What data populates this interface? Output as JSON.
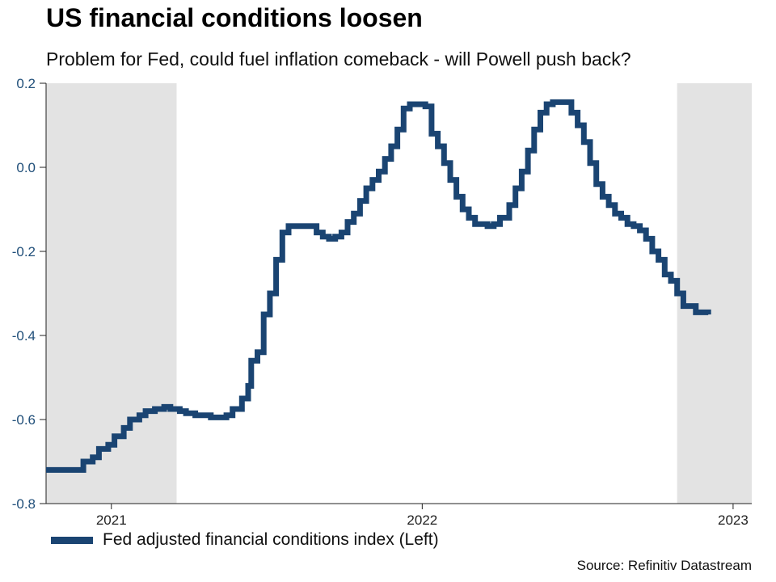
{
  "header": {
    "title": "US financial conditions loosen",
    "subtitle": "Problem for Fed, could fuel inflation comeback - will Powell push back?"
  },
  "legend": {
    "label": "Fed adjusted financial conditions index (Left)"
  },
  "source": "Source: Refinitiv Datastream",
  "colors": {
    "line": "#1a4472",
    "shade": "#e3e3e3",
    "axis": "#222222",
    "y_tick_label": "#1f4e79",
    "x_tick_label": "#222222"
  },
  "chart_data": {
    "type": "line",
    "step": true,
    "title": "US financial conditions loosen",
    "subtitle": "Problem for Fed, could fuel inflation comeback - will Powell push back?",
    "xlabel": "",
    "ylabel": "Fed adjusted financial conditions index",
    "xlim": [
      2020.79,
      2023.06
    ],
    "ylim": [
      -0.8,
      0.2
    ],
    "grid": false,
    "legend_position": "bottom-left",
    "y_ticks": [
      0.2,
      0.0,
      -0.2,
      -0.4,
      -0.6,
      -0.8
    ],
    "x_ticks": [
      {
        "value": 2021,
        "label": "2021"
      },
      {
        "value": 2022,
        "label": "2022"
      },
      {
        "value": 2023,
        "label": "2023"
      }
    ],
    "shaded_regions": [
      [
        2020.79,
        2021.21
      ],
      [
        2022.82,
        2023.06
      ]
    ],
    "series": [
      {
        "name": "Fed adjusted financial conditions index (Left)",
        "x": [
          2020.79,
          2020.9,
          2020.91,
          2020.94,
          2020.96,
          2020.99,
          2021.01,
          2021.04,
          2021.06,
          2021.09,
          2021.11,
          2021.14,
          2021.17,
          2021.19,
          2021.22,
          2021.24,
          2021.27,
          2021.32,
          2021.37,
          2021.39,
          2021.42,
          2021.44,
          2021.45,
          2021.47,
          2021.49,
          2021.51,
          2021.53,
          2021.55,
          2021.57,
          2021.64,
          2021.66,
          2021.68,
          2021.7,
          2021.72,
          2021.74,
          2021.76,
          2021.78,
          2021.8,
          2021.82,
          2021.84,
          2021.86,
          2021.88,
          2021.9,
          2021.92,
          2021.94,
          2021.96,
          2022.01,
          2022.03,
          2022.05,
          2022.07,
          2022.09,
          2022.11,
          2022.13,
          2022.15,
          2022.17,
          2022.21,
          2022.23,
          2022.25,
          2022.28,
          2022.3,
          2022.32,
          2022.34,
          2022.36,
          2022.38,
          2022.4,
          2022.42,
          2022.46,
          2022.48,
          2022.5,
          2022.52,
          2022.54,
          2022.56,
          2022.58,
          2022.6,
          2022.62,
          2022.64,
          2022.66,
          2022.68,
          2022.7,
          2022.72,
          2022.74,
          2022.76,
          2022.78,
          2022.8,
          2022.82,
          2022.84,
          2022.88,
          2022.92
        ],
        "y": [
          -0.72,
          -0.72,
          -0.7,
          -0.69,
          -0.67,
          -0.66,
          -0.64,
          -0.62,
          -0.6,
          -0.59,
          -0.58,
          -0.575,
          -0.57,
          -0.575,
          -0.58,
          -0.585,
          -0.59,
          -0.595,
          -0.59,
          -0.575,
          -0.55,
          -0.52,
          -0.46,
          -0.44,
          -0.35,
          -0.3,
          -0.22,
          -0.155,
          -0.14,
          -0.14,
          -0.155,
          -0.165,
          -0.17,
          -0.165,
          -0.155,
          -0.13,
          -0.11,
          -0.08,
          -0.05,
          -0.03,
          -0.01,
          0.02,
          0.05,
          0.09,
          0.14,
          0.15,
          0.145,
          0.08,
          0.05,
          0.01,
          -0.03,
          -0.07,
          -0.1,
          -0.12,
          -0.135,
          -0.14,
          -0.135,
          -0.12,
          -0.09,
          -0.05,
          -0.01,
          0.04,
          0.09,
          0.13,
          0.15,
          0.155,
          0.155,
          0.13,
          0.1,
          0.06,
          0.01,
          -0.04,
          -0.07,
          -0.09,
          -0.11,
          -0.12,
          -0.135,
          -0.14,
          -0.15,
          -0.17,
          -0.2,
          -0.22,
          -0.255,
          -0.27,
          -0.3,
          -0.33,
          -0.345,
          -0.35
        ]
      }
    ]
  }
}
